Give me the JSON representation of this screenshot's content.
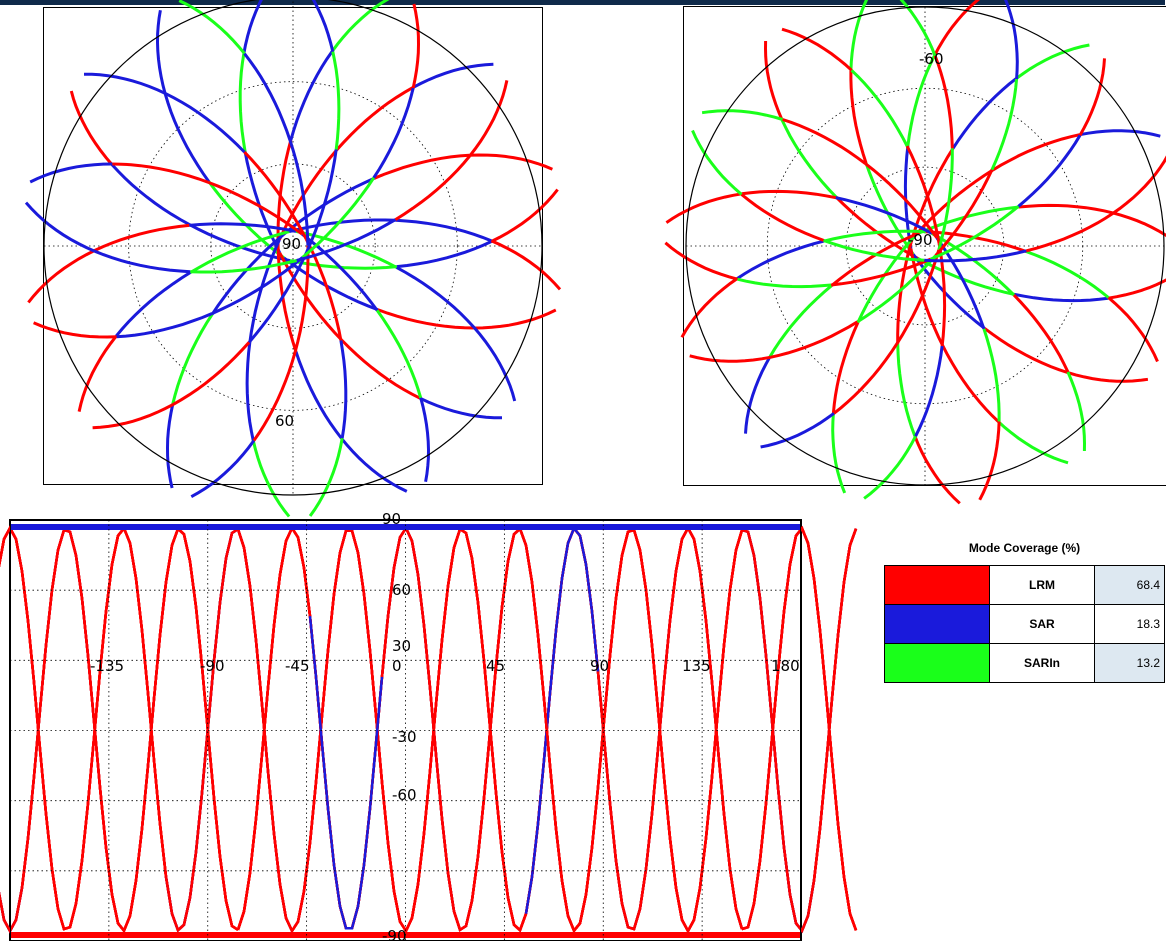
{
  "colors": {
    "lrm": "#ff0000",
    "sar": "#1a1adb",
    "sarin": "#1aff1a",
    "grid": "#000000",
    "header": "#0f2a4a"
  },
  "north_map": {
    "center_label": "90",
    "lat_label": "60"
  },
  "south_map": {
    "center_label": "-90",
    "lat_label": "-60"
  },
  "world_map": {
    "lon_labels": [
      "-135",
      "-90",
      "-45",
      "0",
      "45",
      "90",
      "135",
      "180"
    ],
    "lat_labels": [
      "90",
      "60",
      "30",
      "-30",
      "-60",
      "-90"
    ]
  },
  "legend": {
    "title": "Mode Coverage (%)",
    "rows": [
      {
        "name": "LRM",
        "value": "68.4",
        "color": "#ff0000"
      },
      {
        "name": "SAR",
        "value": "18.3",
        "color": "#1a1adb"
      },
      {
        "name": "SARIn",
        "value": "13.2",
        "color": "#1aff1a"
      }
    ]
  }
}
